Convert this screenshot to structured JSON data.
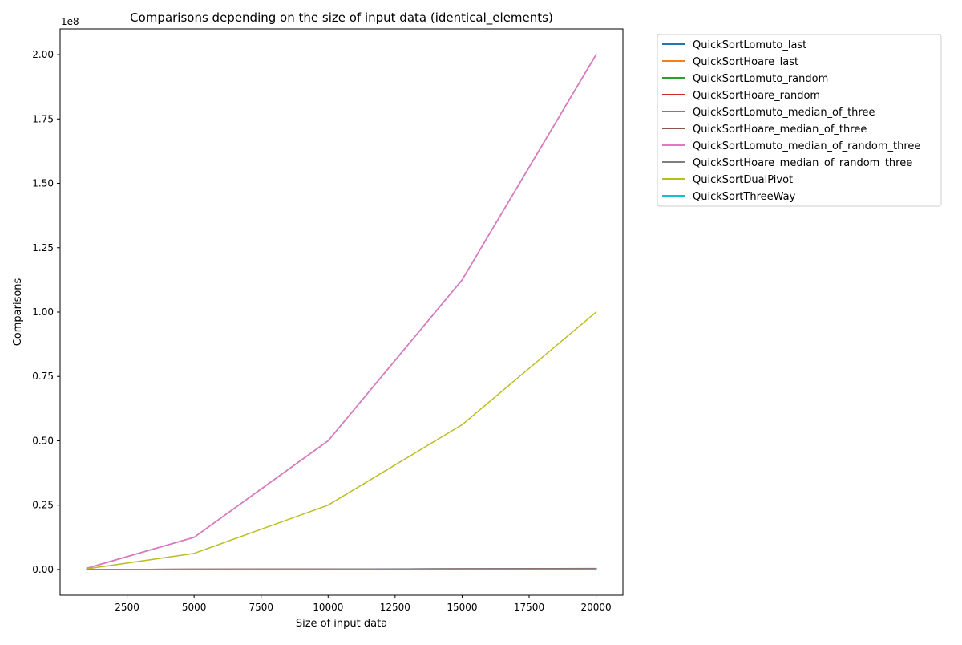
{
  "chart_data": {
    "type": "line",
    "title": "Comparisons depending on the size of input data (identical_elements)",
    "xlabel": "Size of input data",
    "ylabel": "Comparisons",
    "y_offset_label": "1e8",
    "xlim": [
      0,
      21000
    ],
    "ylim": [
      -10000000,
      210000000
    ],
    "xticks": [
      2500,
      5000,
      7500,
      10000,
      12500,
      15000,
      17500,
      20000
    ],
    "xtick_labels": [
      "2500",
      "5000",
      "7500",
      "10000",
      "12500",
      "15000",
      "17500",
      "20000"
    ],
    "yticks": [
      0,
      25000000,
      50000000,
      75000000,
      100000000,
      125000000,
      150000000,
      175000000,
      200000000
    ],
    "ytick_labels": [
      "0.00",
      "0.25",
      "0.50",
      "0.75",
      "1.00",
      "1.25",
      "1.50",
      "1.75",
      "2.00"
    ],
    "x": [
      1000,
      5000,
      10000,
      15000,
      20000
    ],
    "grid": false,
    "legend_position": "outside-right",
    "series": [
      {
        "name": "QuickSortLomuto_last",
        "color": "#1f77b4",
        "values": [
          15000,
          90000,
          180000,
          300000,
          400000
        ]
      },
      {
        "name": "QuickSortHoare_last",
        "color": "#ff7f0e",
        "values": [
          12000,
          70000,
          150000,
          230000,
          310000
        ]
      },
      {
        "name": "QuickSortLomuto_random",
        "color": "#2ca02c",
        "values": [
          500000,
          12500000,
          50000000,
          112500000,
          200000000
        ]
      },
      {
        "name": "QuickSortHoare_random",
        "color": "#d62728",
        "values": [
          12000,
          70000,
          150000,
          230000,
          310000
        ]
      },
      {
        "name": "QuickSortLomuto_median_of_three",
        "color": "#9467bd",
        "values": [
          500000,
          12500000,
          50000000,
          112500000,
          200000000
        ]
      },
      {
        "name": "QuickSortHoare_median_of_three",
        "color": "#8c564b",
        "values": [
          12000,
          70000,
          150000,
          230000,
          310000
        ]
      },
      {
        "name": "QuickSortLomuto_median_of_random_three",
        "color": "#e377c2",
        "values": [
          500000,
          12500000,
          50000000,
          112500000,
          200000000
        ]
      },
      {
        "name": "QuickSortHoare_median_of_random_three",
        "color": "#7f7f7f",
        "values": [
          12000,
          70000,
          150000,
          230000,
          310000
        ]
      },
      {
        "name": "QuickSortDualPivot",
        "color": "#bcbd22",
        "values": [
          250000,
          6250000,
          25000000,
          56250000,
          100000000
        ]
      },
      {
        "name": "QuickSortThreeWay",
        "color": "#17becf",
        "values": [
          2000,
          10000,
          20000,
          30000,
          40000
        ]
      }
    ]
  }
}
